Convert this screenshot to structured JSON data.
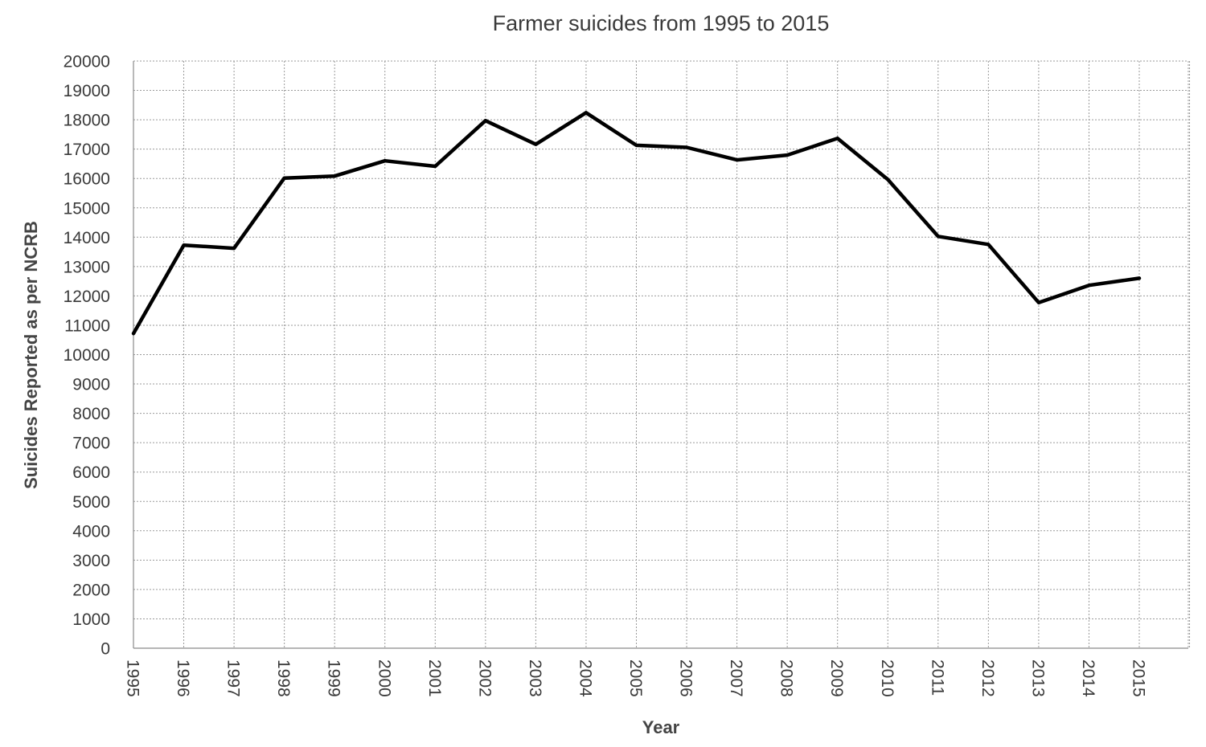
{
  "chart_data": {
    "type": "line",
    "title": "Farmer suicides from 1995 to 2015",
    "xlabel": "Year",
    "ylabel": "Suicides Reported as per NCRB",
    "x": [
      "1995",
      "1996",
      "1997",
      "1998",
      "1999",
      "2000",
      "2001",
      "2002",
      "2003",
      "2004",
      "2005",
      "2006",
      "2007",
      "2008",
      "2009",
      "2010",
      "2011",
      "2012",
      "2013",
      "2014",
      "2015"
    ],
    "y_ticks": [
      "0",
      "1000",
      "2000",
      "3000",
      "4000",
      "5000",
      "6000",
      "7000",
      "8000",
      "9000",
      "10000",
      "11000",
      "12000",
      "13000",
      "14000",
      "15000",
      "16000",
      "17000",
      "18000",
      "19000",
      "20000"
    ],
    "ylim": [
      0,
      20000
    ],
    "grid": true,
    "series": [
      {
        "values": [
          10720,
          13729,
          13622,
          16015,
          16082,
          16603,
          16415,
          17971,
          17164,
          18241,
          17131,
          17060,
          16632,
          16796,
          17368,
          15964,
          14027,
          13754,
          11772,
          12360,
          12602
        ],
        "color": "#000000"
      }
    ]
  }
}
